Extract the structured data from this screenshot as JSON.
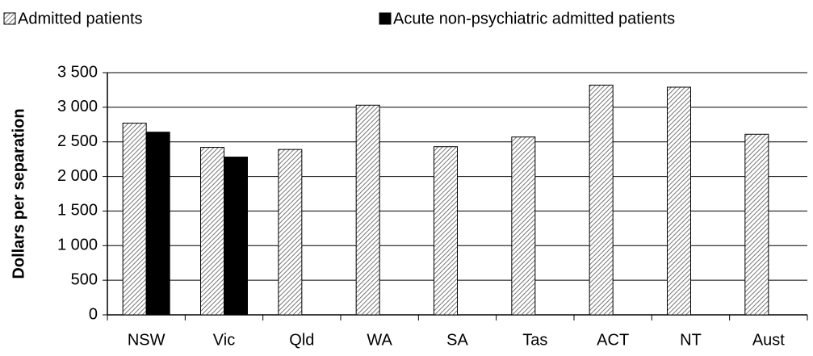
{
  "chart_data": {
    "type": "bar",
    "y_label": "Dollars per separation",
    "categories": [
      "NSW",
      "Vic",
      "Qld",
      "WA",
      "SA",
      "Tas",
      "ACT",
      "NT",
      "Aust"
    ],
    "series": [
      {
        "name": "Admitted patients",
        "color": "#d0d0d0",
        "pattern": "hatch",
        "values": [
          2770,
          2420,
          2390,
          3030,
          2430,
          2570,
          3320,
          3290,
          2610
        ]
      },
      {
        "name": "Acute non-psychiatric admitted patients",
        "color": "#000000",
        "values": [
          2640,
          2280,
          null,
          null,
          null,
          null,
          null,
          null,
          null
        ]
      }
    ],
    "ylim": [
      0,
      3500
    ],
    "yticks": [
      0,
      500,
      {
        "value": 1000,
        "label": "1 000"
      },
      {
        "value": 1500,
        "label": "1 500"
      },
      {
        "value": 2000,
        "label": "2 000"
      },
      {
        "value": 2500,
        "label": "2 500"
      },
      {
        "value": 3000,
        "label": "3 000"
      },
      {
        "value": 3500,
        "label": "3 500"
      }
    ],
    "grid": true,
    "legend": "top"
  }
}
